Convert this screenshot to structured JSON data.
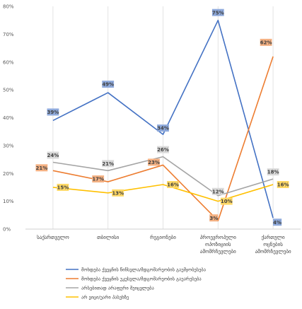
{
  "chart_data": {
    "type": "line",
    "categories": [
      [
        "საქართველო"
      ],
      [
        "თბილისი"
      ],
      [
        "რეგიონები"
      ],
      [
        "პროევროპული",
        "ოპოზიციის",
        "ამომრჩევლები"
      ],
      [
        "ქართული",
        "ოცნების",
        "ამომრჩევლები"
      ]
    ],
    "ylim": [
      0,
      80
    ],
    "yticks": [
      0,
      10,
      20,
      30,
      40,
      50,
      60,
      70,
      80
    ],
    "ytick_suffix": "%",
    "grid": "vertical",
    "legend_position": "bottom",
    "series": [
      {
        "name": "მოხდება ქვეყნის წინსვლა/მდგომარეობის გაუმჯობესება",
        "color": "#4472c4",
        "label_bg": "#8faadc",
        "values": [
          39,
          49,
          34,
          75,
          4
        ],
        "labels": [
          "39%",
          "49%",
          "34%",
          "75%",
          "4%"
        ]
      },
      {
        "name": "მოხდება ქვეყნის უკუსვლა/მდგომარეობის გაუარესება",
        "color": "#ed7d31",
        "label_bg": "#f4b183",
        "values": [
          21,
          17,
          23,
          3,
          62
        ],
        "labels": [
          "21%",
          "17%",
          "23%",
          "3%",
          "62%"
        ]
      },
      {
        "name": "არსებითად არაფერი შეიცვლება",
        "color": "#a5a5a5",
        "label_bg": "#d9d9d9",
        "values": [
          24,
          21,
          26,
          12,
          18
        ],
        "labels": [
          "24%",
          "21%",
          "26%",
          "12%",
          "18%"
        ]
      },
      {
        "name": "არ ვიცი/უარი პასუხზე",
        "color": "#ffc000",
        "label_bg": "#ffd966",
        "values": [
          15,
          13,
          16,
          10,
          16
        ],
        "labels": [
          "15%",
          "13%",
          "16%",
          "10%",
          "16%"
        ]
      }
    ]
  }
}
